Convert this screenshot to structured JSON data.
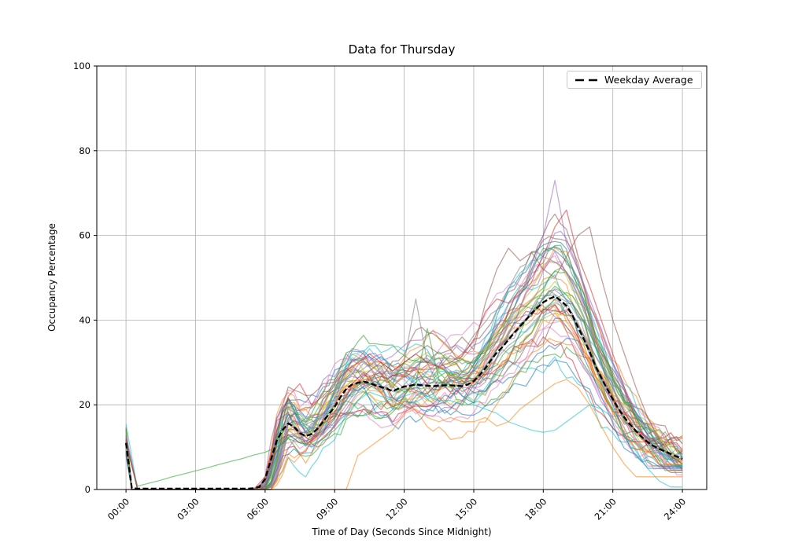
{
  "chart_data": {
    "type": "line",
    "title": "Data for Thursday",
    "xlabel": "Time of Day (Seconds Since Midnight)",
    "ylabel": "Occupancy Percentage",
    "x_tick_labels": [
      "00:00",
      "03:00",
      "06:00",
      "09:00",
      "12:00",
      "15:00",
      "18:00",
      "21:00",
      "24:00"
    ],
    "x_tick_hours": [
      0,
      3,
      6,
      9,
      12,
      15,
      18,
      21,
      24
    ],
    "y_ticks": [
      0,
      20,
      40,
      60,
      80,
      100
    ],
    "xlim_hours": [
      -1.26,
      25.05
    ],
    "ylim": [
      0,
      100
    ],
    "grid": true,
    "grid_color": "#b0b0b0",
    "spine_color": "#000000",
    "legend": {
      "label": "Weekday Average",
      "position": "upper right"
    },
    "weekday_average": {
      "color": "#000000",
      "line_style": "dashed",
      "line_width": 2.3,
      "x_start_hour": 0,
      "x_step_hours": 0.25,
      "values": [
        11,
        0.3,
        0.2,
        0.2,
        0.2,
        0.2,
        0.2,
        0.2,
        0.2,
        0.2,
        0.2,
        0.2,
        0.2,
        0.2,
        0.2,
        0.2,
        0.2,
        0.2,
        0.2,
        0.2,
        0.2,
        0.2,
        0.3,
        0.6,
        2.5,
        7,
        11.5,
        14,
        15.6,
        14.8,
        13.3,
        12.6,
        13.1,
        14.3,
        16,
        17.8,
        19.5,
        21.8,
        23.8,
        24.8,
        25.2,
        25.5,
        25.2,
        24.6,
        24.2,
        23.8,
        23.2,
        23.8,
        24.3,
        24.5,
        24.8,
        24.6,
        24.5,
        24.4,
        24.5,
        24.6,
        24.6,
        24.5,
        24.4,
        24.8,
        25.6,
        27,
        28.6,
        30.6,
        32.4,
        33.7,
        35.4,
        37,
        38.6,
        40,
        41.6,
        43,
        44.2,
        45,
        45.6,
        44.6,
        43.4,
        41.2,
        38.3,
        35.5,
        32.5,
        29.2,
        26.4,
        23.8,
        21.3,
        19,
        17,
        15.3,
        13.8,
        12.4,
        11.2,
        10.3,
        9.6,
        9,
        8.4,
        7.8,
        7.2
      ]
    },
    "day_series_colors": [
      "#1f77b4",
      "#ff7f0e",
      "#2ca02c",
      "#d62728",
      "#9467bd",
      "#8c564b",
      "#e377c2",
      "#7f7f7f",
      "#bcbd22",
      "#17becf"
    ],
    "day_series_alpha": 0.55,
    "day_series_line_width": 1.3,
    "n_day_series_total": 50,
    "notable_day_series": [
      {
        "name": "cyan-midnight-spike-low-afternoon",
        "color": "#17becf",
        "x_start_hour": 0,
        "x_step_hours": 0.5,
        "values": [
          15.5,
          0,
          0,
          0,
          0,
          0,
          0,
          0,
          0,
          0,
          0,
          0,
          1.5,
          8,
          13,
          11,
          10,
          12,
          15,
          18,
          21,
          23,
          22,
          21,
          22,
          23,
          22,
          21,
          21,
          20,
          20,
          19,
          18,
          16,
          15,
          14,
          13.5,
          14,
          16,
          18,
          20,
          19,
          17,
          13,
          9,
          5,
          2,
          0.6,
          0.6
        ]
      },
      {
        "name": "green-early-morning-ramp",
        "color": "#2ca02c",
        "x_start_hour": 0,
        "x_step_hours": 0.5,
        "values": [
          10.5,
          0.8,
          1.5,
          2.2,
          3,
          3.7,
          4.4,
          5.1,
          5.9,
          6.6,
          7.3,
          8.1,
          8.8,
          10,
          12,
          11,
          10.5,
          12,
          14,
          17,
          21,
          24,
          26,
          25,
          23,
          25,
          38,
          26,
          24,
          25,
          26,
          29,
          33,
          36,
          38,
          42,
          45,
          48,
          46,
          42,
          37,
          31,
          26,
          21,
          17,
          13,
          10,
          8,
          6
        ]
      },
      {
        "name": "orange-late-starter",
        "color": "#ff7f0e",
        "x_start_hour": 0,
        "x_step_hours": 0.5,
        "values": [
          0,
          0,
          0,
          0,
          0,
          0,
          0,
          0,
          0,
          0,
          0,
          0,
          0,
          0,
          0,
          0,
          0,
          0,
          0,
          0,
          8,
          10,
          12,
          14,
          18,
          19,
          17,
          16,
          17,
          16,
          16,
          17,
          15,
          16,
          19,
          21,
          23,
          25,
          26,
          24,
          20,
          15,
          10,
          6,
          3,
          3,
          3,
          3,
          3
        ]
      },
      {
        "name": "gray-midday-spike",
        "color": "#7f7f7f",
        "x_start_hour": 0,
        "x_step_hours": 0.5,
        "values": [
          12,
          0,
          0,
          0,
          0,
          0,
          0,
          0,
          0,
          0,
          0,
          0,
          2,
          9,
          14,
          12,
          11,
          13,
          16,
          20,
          24,
          26,
          25,
          27,
          30,
          45,
          30,
          24,
          27,
          25,
          26,
          28,
          31,
          34,
          36,
          39,
          42,
          45,
          43,
          39,
          34,
          29,
          24,
          19,
          15,
          12,
          10,
          8,
          7
        ]
      },
      {
        "name": "purple-evening-peak-73",
        "color": "#9467bd",
        "x_start_hour": 0,
        "x_step_hours": 0.5,
        "values": [
          13,
          0,
          0,
          0,
          0,
          0,
          0,
          0,
          0,
          0,
          0,
          0,
          1,
          8,
          16,
          13,
          10,
          12,
          15,
          19,
          23,
          26,
          28,
          26,
          24,
          26,
          28,
          30,
          28,
          27,
          28,
          31,
          35,
          40,
          46,
          52,
          60,
          73,
          58,
          52,
          45,
          38,
          30,
          24,
          18,
          13,
          9,
          7,
          5
        ]
      },
      {
        "name": "red-high-evening",
        "color": "#d62728",
        "x_start_hour": 0,
        "x_step_hours": 0.5,
        "values": [
          11,
          0,
          0,
          0,
          0,
          0,
          0,
          0,
          0,
          0,
          0,
          0,
          3,
          14,
          22,
          25,
          20,
          22,
          25,
          28,
          30,
          32,
          30,
          28,
          30,
          32,
          30,
          29,
          30,
          32,
          35,
          42,
          45,
          44,
          47,
          50,
          55,
          62,
          66,
          55,
          48,
          40,
          32,
          24,
          16,
          10,
          6,
          4,
          4
        ]
      },
      {
        "name": "brown-late-peak",
        "color": "#8c564b",
        "x_start_hour": 0,
        "x_step_hours": 0.5,
        "values": [
          12,
          0,
          0,
          0,
          0,
          0,
          0,
          0,
          0,
          0,
          0,
          0,
          2,
          9,
          13,
          11,
          12,
          14,
          17,
          21,
          25,
          28,
          30,
          28,
          30,
          32,
          34,
          32,
          33,
          36,
          33,
          44,
          52,
          57,
          54,
          56,
          52,
          50,
          55,
          60,
          62,
          50,
          40,
          32,
          24,
          17,
          12,
          8,
          6
        ]
      }
    ],
    "background_day_series": {
      "count": 43,
      "seed_base": 7,
      "x_start_hour": 0,
      "x_step_hours": 0.25,
      "midnight_spike_range": [
        8,
        15
      ],
      "start_hour_range": [
        5.55,
        6.35
      ],
      "scale_range": [
        0.72,
        1.28
      ],
      "wave_amp_range": [
        1.5,
        5
      ],
      "wave_freq_range": [
        0.45,
        1.2
      ],
      "noise_step": 3.6,
      "freeze_after_hour": 21.5,
      "freeze_below_value": 6
    }
  }
}
